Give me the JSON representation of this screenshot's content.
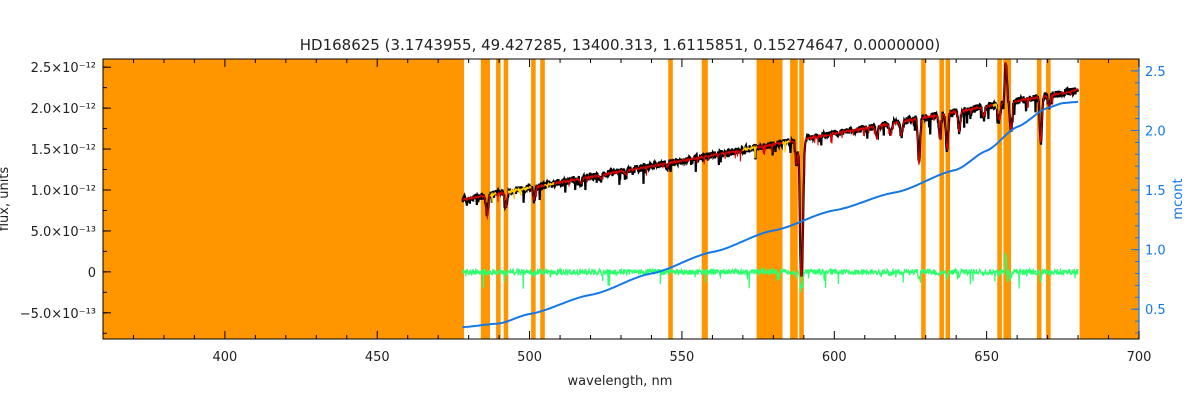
{
  "chart_data": {
    "type": "line",
    "title": "HD168625    (3.1743955, 49.427285, 13400.313, 1.6115851, 0.15274647, 0.0000000)",
    "xlabel": "wavelength, nm",
    "ylabel": "flux, units",
    "y2label": "mcont",
    "xlim": [
      360,
      700
    ],
    "ylim": [
      -8.2e-13,
      2.6e-12
    ],
    "y2lim": [
      0.25,
      2.6
    ],
    "x_ticks": [
      400,
      450,
      500,
      550,
      600,
      650,
      700
    ],
    "x_tick_labels": [
      "400",
      "450",
      "500",
      "550",
      "600",
      "650",
      "700"
    ],
    "y_ticks": [
      -5e-13,
      0,
      5e-13,
      1e-12,
      1.5e-12,
      2e-12,
      2.5e-12
    ],
    "y_tick_labels": [
      "−5.0×10⁻¹³",
      "0",
      "5.0×10⁻¹³",
      "1.0×10⁻¹²",
      "1.5×10⁻¹²",
      "2.0×10⁻¹²",
      "2.5×10⁻¹²"
    ],
    "y2_ticks": [
      0.5,
      1.0,
      1.5,
      2.0,
      2.5
    ],
    "y2_tick_labels": [
      "0.5",
      "1.0",
      "1.5",
      "2.0",
      "2.5"
    ],
    "masked_regions": [
      [
        360,
        478.5
      ],
      [
        484,
        487
      ],
      [
        489,
        490.5
      ],
      [
        491.5,
        493
      ],
      [
        500.5,
        502
      ],
      [
        503.5,
        505
      ],
      [
        545.5,
        547
      ],
      [
        556.5,
        558.5
      ],
      [
        574.5,
        583
      ],
      [
        585.5,
        588
      ],
      [
        588.5,
        590
      ],
      [
        628.5,
        630
      ],
      [
        634.5,
        636
      ],
      [
        636.5,
        638
      ],
      [
        653.5,
        655
      ],
      [
        655.5,
        658
      ],
      [
        666.5,
        668
      ],
      [
        669.5,
        671
      ],
      [
        680.5,
        700
      ]
    ],
    "lines": [
      {
        "center": 486.1,
        "depth": 2.3e-13
      },
      {
        "center": 492.2,
        "depth": 1.8e-13
      },
      {
        "center": 501.5,
        "depth": 1.6e-13
      },
      {
        "center": 516.9,
        "depth": 6e-14
      },
      {
        "center": 523.5,
        "depth": 5e-14
      },
      {
        "center": 531.7,
        "depth": 6e-14
      },
      {
        "center": 545.2,
        "depth": 4e-14
      },
      {
        "center": 569.0,
        "depth": 3e-14
      },
      {
        "center": 587.6,
        "depth": 3e-13
      },
      {
        "center": 589.0,
        "depth": 1.35e-12
      },
      {
        "center": 589.6,
        "depth": 1e-12
      },
      {
        "center": 614.0,
        "depth": 1.7e-13
      },
      {
        "center": 618.5,
        "depth": 1.4e-13
      },
      {
        "center": 622.0,
        "depth": 1.7e-13
      },
      {
        "center": 627.8,
        "depth": 5.5e-13
      },
      {
        "center": 634.7,
        "depth": 3e-13
      },
      {
        "center": 637.0,
        "depth": 4.5e-13
      },
      {
        "center": 641.0,
        "depth": 2.5e-13
      },
      {
        "center": 649.0,
        "depth": 1.2e-13
      },
      {
        "center": 654.0,
        "depth": 2e-13
      },
      {
        "center": 656.3,
        "depth": -5e-13
      },
      {
        "center": 658.0,
        "depth": 3.5e-13
      },
      {
        "center": 667.8,
        "depth": 5.5e-13
      },
      {
        "center": 670.5,
        "depth": 1.5e-13
      }
    ],
    "continuum_flux": {
      "x": [
        478,
        680
      ],
      "y": [
        8.8e-13,
        2.22e-12
      ]
    },
    "mcont": {
      "x": [
        478,
        490,
        500,
        520,
        540,
        560,
        580,
        600,
        620,
        640,
        650,
        660,
        670,
        675,
        680
      ],
      "y": [
        0.35,
        0.38,
        0.46,
        0.62,
        0.8,
        0.98,
        1.16,
        1.33,
        1.48,
        1.67,
        1.83,
        2.03,
        2.19,
        2.23,
        2.24
      ]
    },
    "residual_range": [
      478,
      680
    ],
    "colors": {
      "mask": "#ff9600",
      "observed": "#000000",
      "model": "#e00000",
      "fit_region": "#ffd400",
      "residual": "#2dff6e",
      "mcont": "#1478e6",
      "right_axis": "#1478e6"
    }
  }
}
